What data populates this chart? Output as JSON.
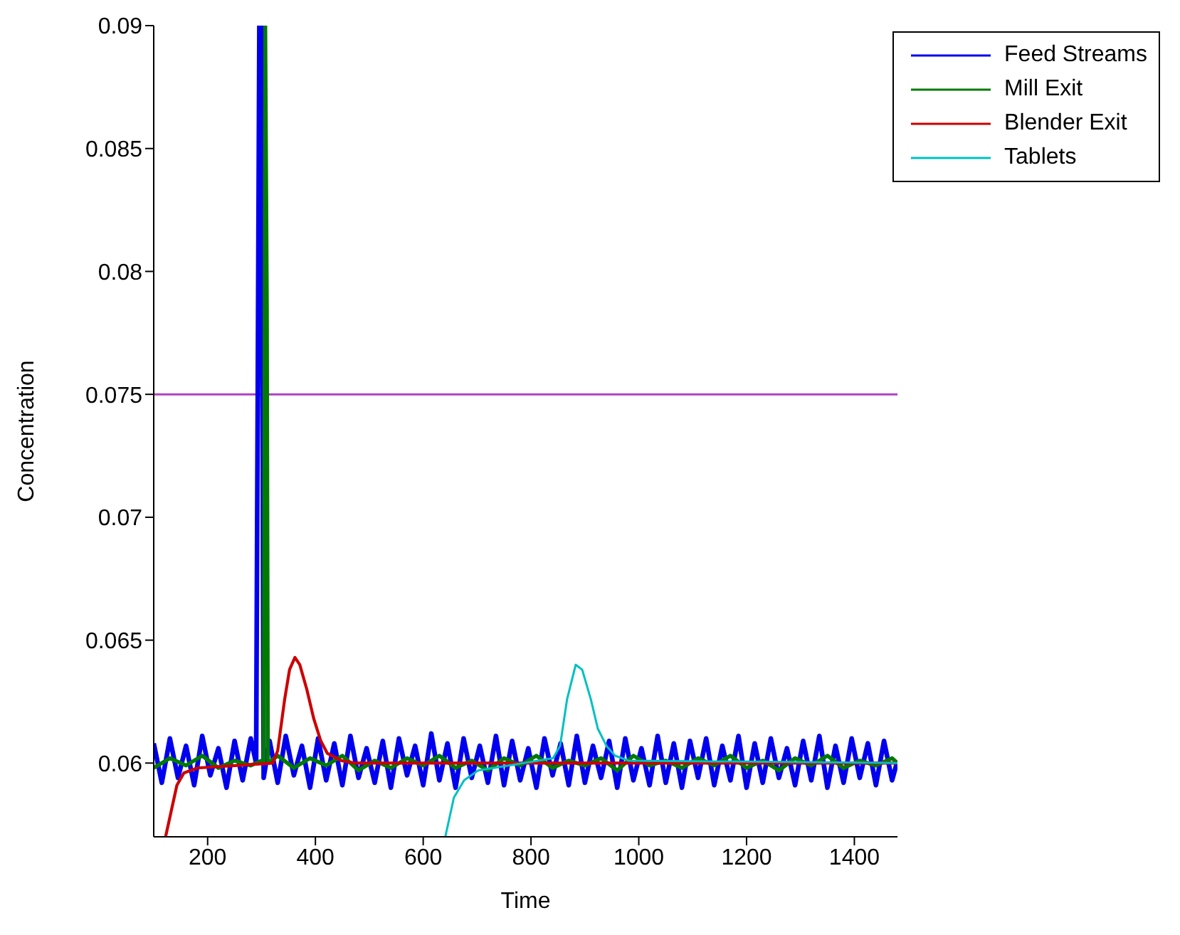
{
  "chart_data": {
    "type": "line",
    "xlabel": "Time",
    "ylabel": "Concentration",
    "xlim": [
      100,
      1480
    ],
    "ylim": [
      0.057,
      0.09
    ],
    "xticks": [
      200,
      400,
      600,
      800,
      1000,
      1200,
      1400
    ],
    "yticks": [
      0.06,
      0.065,
      0.07,
      0.075,
      0.08,
      0.085,
      0.09
    ],
    "grid": false,
    "legend": "top right",
    "marker": "none",
    "line_style": "solid",
    "ref_lines": [
      {
        "axis": "y",
        "value": 0.075,
        "color": "#b040c0"
      }
    ],
    "series": [
      {
        "name": "Feed Streams",
        "color": "#0000ee",
        "x": [
          100,
          115,
          130,
          145,
          160,
          175,
          190,
          205,
          220,
          235,
          250,
          265,
          280,
          290,
          296,
          300,
          304,
          315,
          330,
          345,
          360,
          375,
          390,
          405,
          420,
          435,
          450,
          465,
          480,
          495,
          510,
          525,
          540,
          555,
          570,
          585,
          600,
          615,
          630,
          645,
          660,
          675,
          690,
          705,
          720,
          735,
          750,
          765,
          780,
          795,
          810,
          825,
          840,
          855,
          870,
          885,
          900,
          915,
          930,
          945,
          960,
          975,
          990,
          1005,
          1020,
          1035,
          1050,
          1065,
          1080,
          1095,
          1110,
          1125,
          1140,
          1155,
          1170,
          1185,
          1200,
          1215,
          1230,
          1245,
          1260,
          1275,
          1290,
          1305,
          1320,
          1335,
          1350,
          1365,
          1380,
          1395,
          1410,
          1425,
          1440,
          1455,
          1470,
          1480
        ],
        "values": [
          0.0608,
          0.0592,
          0.061,
          0.0594,
          0.0607,
          0.0591,
          0.0611,
          0.0595,
          0.0606,
          0.059,
          0.0609,
          0.0593,
          0.061,
          0.06,
          0.09,
          0.09,
          0.0594,
          0.0609,
          0.0592,
          0.0611,
          0.0595,
          0.0607,
          0.059,
          0.061,
          0.0593,
          0.0608,
          0.0591,
          0.0611,
          0.0594,
          0.0606,
          0.0592,
          0.0609,
          0.059,
          0.061,
          0.0595,
          0.0607,
          0.0591,
          0.0612,
          0.0593,
          0.0608,
          0.059,
          0.061,
          0.0594,
          0.0607,
          0.0592,
          0.0611,
          0.0591,
          0.0609,
          0.0593,
          0.0606,
          0.059,
          0.061,
          0.0595,
          0.0608,
          0.0591,
          0.0611,
          0.0592,
          0.0607,
          0.0594,
          0.0609,
          0.059,
          0.061,
          0.0593,
          0.0606,
          0.0591,
          0.0611,
          0.0592,
          0.0608,
          0.059,
          0.0609,
          0.0594,
          0.061,
          0.0591,
          0.0607,
          0.0593,
          0.0611,
          0.059,
          0.0608,
          0.0592,
          0.061,
          0.0594,
          0.0606,
          0.0591,
          0.0609,
          0.0593,
          0.0611,
          0.059,
          0.0607,
          0.0592,
          0.061,
          0.0594,
          0.0608,
          0.0591,
          0.0609,
          0.0593,
          0.0601
        ]
      },
      {
        "name": "Mill Exit",
        "color": "#007a00",
        "x": [
          100,
          130,
          160,
          190,
          220,
          250,
          280,
          300,
          304,
          307,
          310,
          312,
          330,
          360,
          390,
          420,
          450,
          480,
          510,
          540,
          570,
          600,
          630,
          660,
          690,
          720,
          750,
          780,
          810,
          840,
          870,
          900,
          930,
          960,
          990,
          1020,
          1050,
          1080,
          1110,
          1140,
          1170,
          1200,
          1230,
          1260,
          1290,
          1320,
          1350,
          1380,
          1410,
          1440,
          1470,
          1480
        ],
        "values": [
          0.0598,
          0.0602,
          0.0599,
          0.0603,
          0.0598,
          0.0601,
          0.0599,
          0.0601,
          0.06,
          0.09,
          0.0785,
          0.06,
          0.0603,
          0.0598,
          0.0602,
          0.0599,
          0.0603,
          0.0597,
          0.0601,
          0.0598,
          0.0602,
          0.0599,
          0.0603,
          0.0598,
          0.0601,
          0.0597,
          0.0602,
          0.0599,
          0.0603,
          0.0598,
          0.0601,
          0.0599,
          0.0602,
          0.0597,
          0.0603,
          0.0599,
          0.0601,
          0.0598,
          0.0602,
          0.0599,
          0.0603,
          0.0598,
          0.0601,
          0.0597,
          0.0602,
          0.0599,
          0.0603,
          0.0598,
          0.0601,
          0.0599,
          0.0602,
          0.06
        ]
      },
      {
        "name": "Blender Exit",
        "color": "#cc0000",
        "x": [
          122,
          143,
          156,
          181,
          251,
          321,
          330,
          343,
          352,
          362,
          371,
          384,
          397,
          410,
          422,
          448,
          473,
          1480
        ],
        "values": [
          0.057,
          0.0591,
          0.0596,
          0.0598,
          0.0599,
          0.06,
          0.0605,
          0.0626,
          0.0638,
          0.0643,
          0.064,
          0.063,
          0.0618,
          0.0609,
          0.0604,
          0.0601,
          0.06,
          0.06
        ]
      },
      {
        "name": "Tablets",
        "color": "#00c0c0",
        "x": [
          641,
          657,
          676,
          702,
          759,
          841,
          854,
          867,
          883,
          895,
          911,
          924,
          940,
          956,
          981,
          1480
        ],
        "values": [
          0.057,
          0.0586,
          0.0593,
          0.0597,
          0.0599,
          0.0602,
          0.0607,
          0.0626,
          0.064,
          0.0638,
          0.0626,
          0.0614,
          0.0607,
          0.0603,
          0.0601,
          0.06
        ]
      }
    ]
  }
}
